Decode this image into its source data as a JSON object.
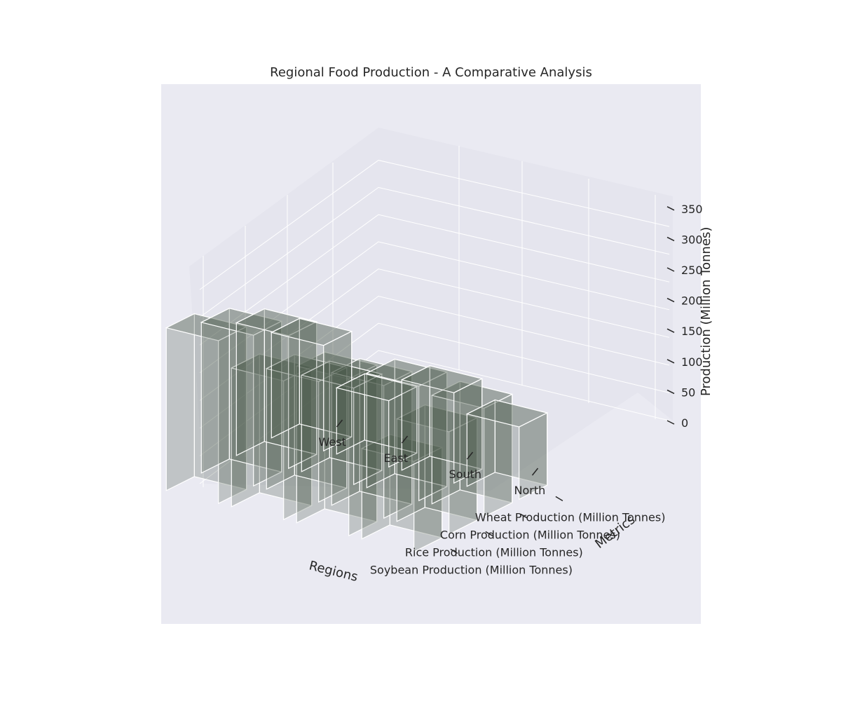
{
  "chart_data": {
    "type": "bar3d",
    "title": "Regional Food Production - A Comparative Analysis",
    "xlabel": "Regions",
    "ylabel": "Metrics",
    "zlabel": "Production (Million Tonnes)",
    "categories": [
      "West",
      "East",
      "South",
      "North"
    ],
    "series": [
      {
        "name": "Wheat Production (Million Tonnes)",
        "values": [
          175,
          110,
          150,
          120
        ]
      },
      {
        "name": "Corn Production (Million Tonnes)",
        "values": [
          220,
          160,
          190,
          180
        ]
      },
      {
        "name": "Rice Production (Million Tonnes)",
        "values": [
          250,
          200,
          220,
          170
        ]
      },
      {
        "name": "Soybean Production (Million Tonnes)",
        "values": [
          270,
          230,
          260,
          150
        ]
      }
    ],
    "zlim": [
      0,
      350
    ],
    "zticks": [
      0,
      50,
      100,
      150,
      200,
      250,
      300,
      350
    ],
    "grid": true,
    "colors": {
      "pane": "#eaeaf2",
      "wall": "#e5e5ee",
      "bar": "#4a5a48",
      "edge": "#ffffff",
      "text": "#262626"
    }
  }
}
